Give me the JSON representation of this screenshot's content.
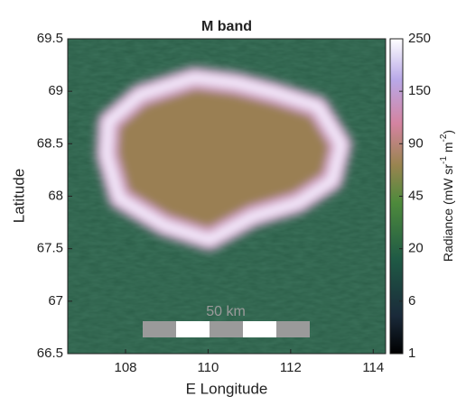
{
  "chart_data": {
    "type": "heatmap",
    "title": "M band",
    "xlabel": "E Longitude",
    "ylabel": "Latitude",
    "xlim": [
      106.6,
      114.3
    ],
    "xticks": [
      108,
      110,
      112,
      114
    ],
    "ylim": [
      66.5,
      69.5
    ],
    "yticks": [
      66.5,
      67,
      67.5,
      68,
      68.5,
      69,
      69.5
    ],
    "colorbar_ticks": [
      1,
      6,
      20,
      45,
      90,
      150,
      250
    ],
    "colorbar_label": [
      "Radiance (mW sr",
      "-1",
      " m",
      "-2",
      ")"
    ],
    "annotation": "50 km"
  }
}
